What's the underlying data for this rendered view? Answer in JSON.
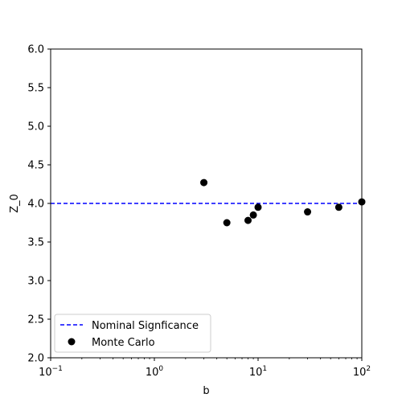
{
  "chart_data": {
    "type": "scatter",
    "title": "",
    "xlabel": "b",
    "ylabel": "Z_0",
    "xscale": "log",
    "xlim": [
      0.1,
      100
    ],
    "ylim": [
      2.0,
      6.0
    ],
    "grid": false,
    "legend_position": "lower-left",
    "x_major_ticks": [
      0.1,
      1,
      10,
      100
    ],
    "x_tick_labels": [
      {
        "base": "10",
        "exp": "−1"
      },
      {
        "base": "10",
        "exp": "0"
      },
      {
        "base": "10",
        "exp": "1"
      },
      {
        "base": "10",
        "exp": "2"
      }
    ],
    "y_ticks": [
      2.0,
      2.5,
      3.0,
      3.5,
      4.0,
      4.5,
      5.0,
      5.5,
      6.0
    ],
    "y_tick_labels": [
      "2.0",
      "2.5",
      "3.0",
      "3.5",
      "4.0",
      "4.5",
      "5.0",
      "5.5",
      "6.0"
    ],
    "reference_line": {
      "name": "Nominal Signficance",
      "y": 4.0,
      "style": "dashed",
      "color": "#0000ff"
    },
    "series": [
      {
        "name": "Monte Carlo",
        "color": "#000000",
        "x": [
          3,
          5,
          8,
          9,
          10,
          30,
          60,
          100
        ],
        "y": [
          4.27,
          3.75,
          3.78,
          3.85,
          3.95,
          3.89,
          3.95,
          4.02
        ]
      }
    ]
  }
}
